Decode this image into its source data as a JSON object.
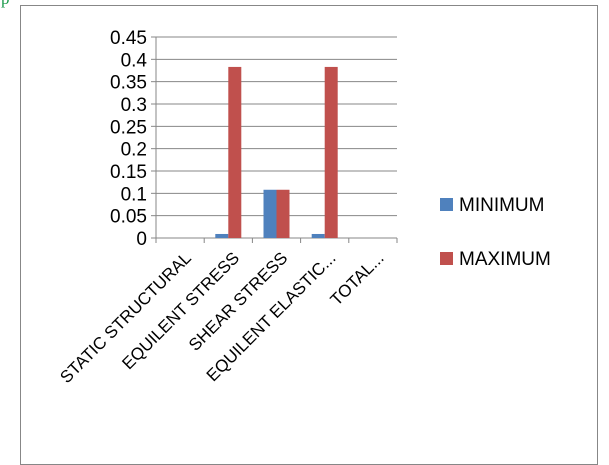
{
  "top_fragment": "p",
  "chart_data": {
    "type": "bar",
    "categories": [
      "STATIC STRUCTURAL",
      "EQUILENT STRESS",
      "SHEAR STRESS",
      "EQUILENT ELASTIC...",
      "TOTAL..."
    ],
    "series": [
      {
        "name": "MINIMUM",
        "color": "#4f81bd",
        "values": [
          0,
          0.009,
          0.108,
          0.009,
          0
        ]
      },
      {
        "name": "MAXIMUM",
        "color": "#c0504d",
        "values": [
          0,
          0.383,
          0.108,
          0.383,
          0
        ]
      }
    ],
    "yticks": [
      "0",
      "0.05",
      "0.1",
      "0.15",
      "0.2",
      "0.25",
      "0.3",
      "0.35",
      "0.4",
      "0.45"
    ],
    "ylim": [
      0,
      0.45
    ],
    "grid": true,
    "legend_position": "right",
    "title": "",
    "xlabel": "",
    "ylabel": ""
  }
}
